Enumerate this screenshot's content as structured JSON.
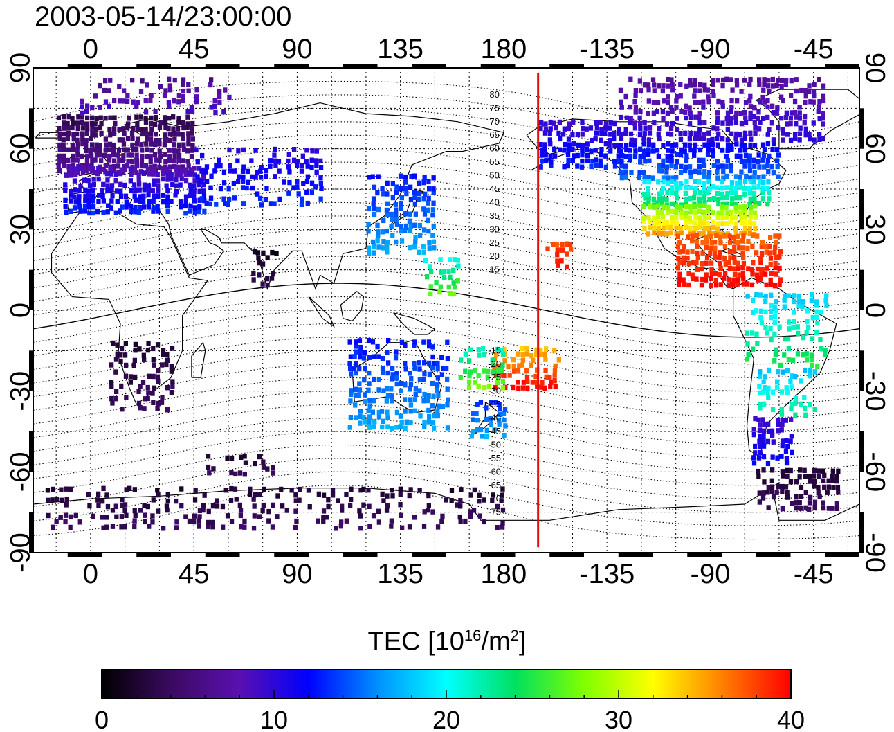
{
  "title": "2003-05-14/23:00:00",
  "map": {
    "projection": "equirectangular",
    "lon_range": [
      -25,
      335
    ],
    "lat_range": [
      -90,
      90
    ],
    "terminator_lon": 195,
    "terminator_color": "#e01010",
    "x_ticks": [
      {
        "lon": 0,
        "label": "0"
      },
      {
        "lon": 45,
        "label": "45"
      },
      {
        "lon": 90,
        "label": "90"
      },
      {
        "lon": 135,
        "label": "135"
      },
      {
        "lon": 180,
        "label": "180"
      },
      {
        "lon": 225,
        "label": "-135"
      },
      {
        "lon": 270,
        "label": "-90"
      },
      {
        "lon": 315,
        "label": "-45"
      }
    ],
    "y_ticks": [
      {
        "lat": 90,
        "label": "90"
      },
      {
        "lat": 60,
        "label": "60"
      },
      {
        "lat": 30,
        "label": "30"
      },
      {
        "lat": 0,
        "label": "0"
      },
      {
        "lat": -30,
        "label": "-30"
      },
      {
        "lat": -60,
        "label": "-60"
      },
      {
        "lat": -90,
        "label": "-90"
      }
    ],
    "contour_labels": [
      {
        "lat": 80,
        "text": "80"
      },
      {
        "lat": 75,
        "text": "75"
      },
      {
        "lat": 70,
        "text": "70"
      },
      {
        "lat": 65,
        "text": "65"
      },
      {
        "lat": 60,
        "text": "60"
      },
      {
        "lat": 55,
        "text": "55"
      },
      {
        "lat": 50,
        "text": "50"
      },
      {
        "lat": 45,
        "text": "45"
      },
      {
        "lat": 40,
        "text": "40"
      },
      {
        "lat": 35,
        "text": "35"
      },
      {
        "lat": 30,
        "text": "30"
      },
      {
        "lat": 25,
        "text": "25"
      },
      {
        "lat": 20,
        "text": "20"
      },
      {
        "lat": 15,
        "text": "15"
      },
      {
        "lat": -15,
        "text": "-15"
      },
      {
        "lat": -20,
        "text": "-20"
      },
      {
        "lat": -25,
        "text": "-25"
      },
      {
        "lat": -30,
        "text": "-30"
      },
      {
        "lat": -35,
        "text": "-35"
      },
      {
        "lat": -40,
        "text": "-40"
      },
      {
        "lat": -45,
        "text": "-45"
      },
      {
        "lat": -50,
        "text": "-50"
      },
      {
        "lat": -55,
        "text": "-55"
      },
      {
        "lat": -60,
        "text": "-60"
      },
      {
        "lat": -65,
        "text": "-65"
      },
      {
        "lat": -70,
        "text": "-70"
      },
      {
        "lat": -75,
        "text": "-75"
      }
    ],
    "tec_regions": [
      {
        "name": "europe-north",
        "lon": [
          -15,
          45
        ],
        "lat": [
          50,
          72
        ],
        "tec": [
          3,
          7
        ],
        "density": 0.85
      },
      {
        "name": "europe-south",
        "lon": [
          -12,
          50
        ],
        "lat": [
          35,
          52
        ],
        "tec": [
          8,
          13
        ],
        "density": 0.75
      },
      {
        "name": "north-atlantic-arctic",
        "lon": [
          -5,
          60
        ],
        "lat": [
          72,
          85
        ],
        "tec": [
          6,
          9
        ],
        "density": 0.3
      },
      {
        "name": "russia",
        "lon": [
          45,
          100
        ],
        "lat": [
          38,
          60
        ],
        "tec": [
          10,
          13
        ],
        "density": 0.35
      },
      {
        "name": "east-asia",
        "lon": [
          120,
          150
        ],
        "lat": [
          20,
          50
        ],
        "tec": [
          12,
          17
        ],
        "density": 0.55
      },
      {
        "name": "india",
        "lon": [
          70,
          82
        ],
        "lat": [
          8,
          22
        ],
        "tec": [
          1,
          3
        ],
        "density": 0.4
      },
      {
        "name": "africa-south",
        "lon": [
          8,
          35
        ],
        "lat": [
          -38,
          -12
        ],
        "tec": [
          2,
          4
        ],
        "density": 0.35
      },
      {
        "name": "australia",
        "lon": [
          112,
          155
        ],
        "lat": [
          -45,
          -12
        ],
        "tec": [
          12,
          17
        ],
        "density": 0.45
      },
      {
        "name": "new-zealand",
        "lon": [
          165,
          180
        ],
        "lat": [
          -48,
          -34
        ],
        "tec": [
          13,
          17
        ],
        "density": 0.6
      },
      {
        "name": "pacific-south-hot",
        "lon": [
          175,
          205
        ],
        "lat": [
          -30,
          -14
        ],
        "tec": [
          33,
          40
        ],
        "density": 0.5
      },
      {
        "name": "pacific-southwest",
        "lon": [
          160,
          180
        ],
        "lat": [
          -30,
          -14
        ],
        "tec": [
          20,
          28
        ],
        "density": 0.45
      },
      {
        "name": "hawaii",
        "lon": [
          198,
          210
        ],
        "lat": [
          15,
          25
        ],
        "tec": [
          37,
          40
        ],
        "density": 0.55
      },
      {
        "name": "pacific-north",
        "lon": [
          145,
          160
        ],
        "lat": [
          5,
          18
        ],
        "tec": [
          20,
          27
        ],
        "density": 0.35
      },
      {
        "name": "alaska",
        "lon": [
          195,
          230
        ],
        "lat": [
          52,
          70
        ],
        "tec": [
          9,
          13
        ],
        "density": 0.7
      },
      {
        "name": "canada",
        "lon": [
          230,
          300
        ],
        "lat": [
          48,
          62
        ],
        "tec": [
          11,
          15
        ],
        "density": 0.7
      },
      {
        "name": "arctic-canada",
        "lon": [
          230,
          320
        ],
        "lat": [
          62,
          85
        ],
        "tec": [
          7,
          10
        ],
        "density": 0.55
      },
      {
        "name": "usa-north",
        "lon": [
          240,
          295
        ],
        "lat": [
          38,
          48
        ],
        "tec": [
          18,
          24
        ],
        "density": 0.8
      },
      {
        "name": "usa-south",
        "lon": [
          240,
          290
        ],
        "lat": [
          27,
          38
        ],
        "tec": [
          27,
          35
        ],
        "density": 0.85
      },
      {
        "name": "mexico-caribbean",
        "lon": [
          255,
          300
        ],
        "lat": [
          8,
          27
        ],
        "tec": [
          37,
          40
        ],
        "density": 0.7
      },
      {
        "name": "south-america-north",
        "lon": [
          285,
          320
        ],
        "lat": [
          -22,
          5
        ],
        "tec": [
          18,
          25
        ],
        "density": 0.35
      },
      {
        "name": "south-america-mid",
        "lon": [
          290,
          315
        ],
        "lat": [
          -40,
          -22
        ],
        "tec": [
          17,
          23
        ],
        "density": 0.4
      },
      {
        "name": "patagonia",
        "lon": [
          288,
          305
        ],
        "lat": [
          -58,
          -40
        ],
        "tec": [
          9,
          12
        ],
        "density": 0.6
      },
      {
        "name": "antarctic-peninsula",
        "lon": [
          290,
          325
        ],
        "lat": [
          -75,
          -60
        ],
        "tec": [
          2,
          4
        ],
        "density": 0.55
      },
      {
        "name": "antarctica",
        "lon": [
          -20,
          180
        ],
        "lat": [
          -82,
          -66
        ],
        "tec": [
          2,
          4
        ],
        "density": 0.3
      },
      {
        "name": "south-indian-ocean",
        "lon": [
          50,
          80
        ],
        "lat": [
          -62,
          -55
        ],
        "tec": [
          2,
          4
        ],
        "density": 0.35
      }
    ]
  },
  "colorbar": {
    "title": "TEC  [10",
    "title_exp": "16",
    "title_unit": "/m",
    "title_unit_exp": "2",
    "title_end": "]",
    "min": 0,
    "max": 40,
    "ticks": [
      {
        "value": 0,
        "label": "0"
      },
      {
        "value": 10,
        "label": "10"
      },
      {
        "value": 20,
        "label": "20"
      },
      {
        "value": 30,
        "label": "30"
      },
      {
        "value": 40,
        "label": "40"
      }
    ],
    "stops": [
      "#000000",
      "#3a0a60",
      "#5a10b0",
      "#0000ff",
      "#0090ff",
      "#00ffff",
      "#00e060",
      "#80ff00",
      "#ffff00",
      "#ff8000",
      "#ff0000"
    ]
  }
}
